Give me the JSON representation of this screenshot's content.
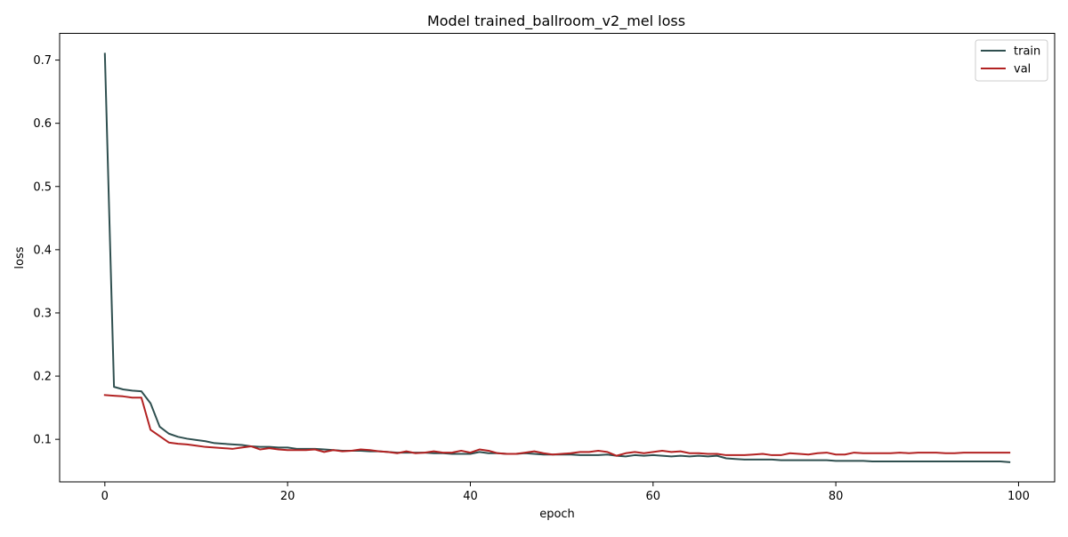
{
  "chart_data": {
    "type": "line",
    "title": "Model trained_ballroom_v2_mel loss",
    "xlabel": "epoch",
    "ylabel": "loss",
    "xlim": [
      -4.95,
      103.95
    ],
    "ylim": [
      0.0327,
      0.7423
    ],
    "xticks": [
      0,
      20,
      40,
      60,
      80,
      100
    ],
    "yticks": [
      0.1,
      0.2,
      0.3,
      0.4,
      0.5,
      0.6,
      0.7
    ],
    "grid": false,
    "legend_position": "top-right",
    "series": [
      {
        "name": "train",
        "color": "#2f4f4f",
        "x": [
          0,
          1,
          2,
          3,
          4,
          5,
          6,
          7,
          8,
          9,
          10,
          11,
          12,
          13,
          14,
          15,
          16,
          17,
          18,
          19,
          20,
          21,
          22,
          23,
          24,
          25,
          26,
          27,
          28,
          29,
          30,
          31,
          32,
          33,
          34,
          35,
          36,
          37,
          38,
          39,
          40,
          41,
          42,
          43,
          44,
          45,
          46,
          47,
          48,
          49,
          50,
          51,
          52,
          53,
          54,
          55,
          56,
          57,
          58,
          59,
          60,
          61,
          62,
          63,
          64,
          65,
          66,
          67,
          68,
          69,
          70,
          71,
          72,
          73,
          74,
          75,
          76,
          77,
          78,
          79,
          80,
          81,
          82,
          83,
          84,
          85,
          86,
          87,
          88,
          89,
          90,
          91,
          92,
          93,
          94,
          95,
          96,
          97,
          98,
          99
        ],
        "values": [
          0.71,
          0.183,
          0.179,
          0.177,
          0.176,
          0.157,
          0.12,
          0.109,
          0.104,
          0.101,
          0.099,
          0.097,
          0.094,
          0.093,
          0.092,
          0.091,
          0.089,
          0.088,
          0.088,
          0.087,
          0.087,
          0.085,
          0.085,
          0.085,
          0.084,
          0.083,
          0.082,
          0.082,
          0.082,
          0.081,
          0.081,
          0.08,
          0.079,
          0.079,
          0.079,
          0.079,
          0.078,
          0.078,
          0.077,
          0.077,
          0.077,
          0.08,
          0.078,
          0.078,
          0.077,
          0.077,
          0.078,
          0.077,
          0.076,
          0.076,
          0.076,
          0.076,
          0.075,
          0.075,
          0.075,
          0.076,
          0.074,
          0.073,
          0.075,
          0.074,
          0.075,
          0.074,
          0.073,
          0.074,
          0.073,
          0.074,
          0.073,
          0.074,
          0.07,
          0.069,
          0.068,
          0.068,
          0.068,
          0.068,
          0.067,
          0.067,
          0.067,
          0.067,
          0.067,
          0.067,
          0.066,
          0.066,
          0.066,
          0.066,
          0.065,
          0.065,
          0.065,
          0.065,
          0.065,
          0.065,
          0.065,
          0.065,
          0.065,
          0.065,
          0.065,
          0.065,
          0.065,
          0.065,
          0.065,
          0.064
        ]
      },
      {
        "name": "val",
        "color": "#b22222",
        "x": [
          0,
          1,
          2,
          3,
          4,
          5,
          6,
          7,
          8,
          9,
          10,
          11,
          12,
          13,
          14,
          15,
          16,
          17,
          18,
          19,
          20,
          21,
          22,
          23,
          24,
          25,
          26,
          27,
          28,
          29,
          30,
          31,
          32,
          33,
          34,
          35,
          36,
          37,
          38,
          39,
          40,
          41,
          42,
          43,
          44,
          45,
          46,
          47,
          48,
          49,
          50,
          51,
          52,
          53,
          54,
          55,
          56,
          57,
          58,
          59,
          60,
          61,
          62,
          63,
          64,
          65,
          66,
          67,
          68,
          69,
          70,
          71,
          72,
          73,
          74,
          75,
          76,
          77,
          78,
          79,
          80,
          81,
          82,
          83,
          84,
          85,
          86,
          87,
          88,
          89,
          90,
          91,
          92,
          93,
          94,
          95,
          96,
          97,
          98,
          99
        ],
        "values": [
          0.17,
          0.169,
          0.168,
          0.166,
          0.166,
          0.115,
          0.105,
          0.095,
          0.093,
          0.092,
          0.09,
          0.088,
          0.087,
          0.086,
          0.085,
          0.087,
          0.089,
          0.084,
          0.086,
          0.084,
          0.083,
          0.083,
          0.083,
          0.084,
          0.08,
          0.083,
          0.081,
          0.082,
          0.084,
          0.083,
          0.081,
          0.08,
          0.078,
          0.081,
          0.078,
          0.079,
          0.081,
          0.079,
          0.079,
          0.082,
          0.079,
          0.084,
          0.082,
          0.078,
          0.077,
          0.077,
          0.079,
          0.081,
          0.078,
          0.076,
          0.077,
          0.078,
          0.08,
          0.08,
          0.082,
          0.08,
          0.074,
          0.078,
          0.08,
          0.078,
          0.08,
          0.082,
          0.08,
          0.081,
          0.078,
          0.078,
          0.077,
          0.077,
          0.075,
          0.075,
          0.075,
          0.076,
          0.077,
          0.075,
          0.075,
          0.078,
          0.077,
          0.076,
          0.078,
          0.079,
          0.076,
          0.076,
          0.079,
          0.078,
          0.078,
          0.078,
          0.078,
          0.079,
          0.078,
          0.079,
          0.079,
          0.079,
          0.078,
          0.078,
          0.079,
          0.079,
          0.079,
          0.079,
          0.079,
          0.079
        ]
      }
    ]
  }
}
